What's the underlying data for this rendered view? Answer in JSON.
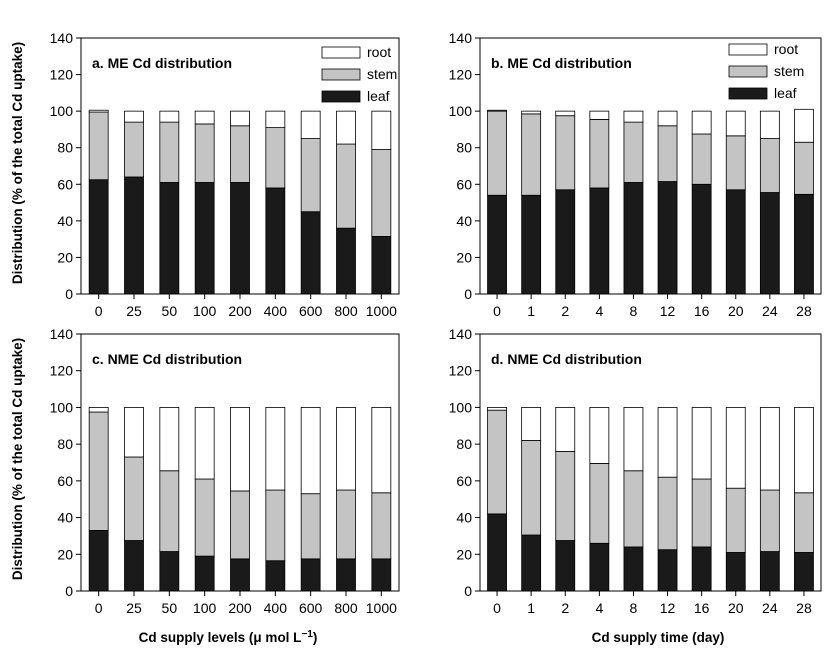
{
  "colors": {
    "leaf": "#1a1a1a",
    "stem": "#c4c4c4",
    "root": "#ffffff",
    "outline": "#000000"
  },
  "figure": {
    "ylabel_top": "Distribution (% of the total Cd uptake)",
    "ylabel_bottom": "Distribution (% of the total Cd uptake)",
    "xlabel_left": "Cd supply levels (μ mol L",
    "xlabel_left_sup": "−1",
    "xlabel_left_end": ")",
    "xlabel_right": "Cd supply time (day)"
  },
  "chart_data": [
    {
      "type": "bar",
      "stacked": true,
      "title": "a. ME Cd distribution",
      "categories": [
        "0",
        "25",
        "50",
        "100",
        "200",
        "400",
        "600",
        "800",
        "1000"
      ],
      "ylim": [
        0,
        140
      ],
      "yticks": [
        "0",
        "20",
        "40",
        "60",
        "80",
        "100",
        "120",
        "140"
      ],
      "legend": "top-right",
      "series": [
        {
          "name": "leaf",
          "values": [
            62.5,
            64,
            61,
            61,
            61,
            58,
            45,
            36,
            31.5
          ]
        },
        {
          "name": "stem",
          "values": [
            37,
            30,
            33,
            32,
            31,
            33,
            40,
            46,
            47.5
          ]
        },
        {
          "name": "root",
          "values": [
            1,
            6,
            6,
            7,
            8,
            9,
            15,
            18,
            21
          ]
        }
      ]
    },
    {
      "type": "bar",
      "stacked": true,
      "title": "b. ME Cd distribution",
      "categories": [
        "0",
        "1",
        "2",
        "4",
        "8",
        "12",
        "16",
        "20",
        "24",
        "28"
      ],
      "ylim": [
        0,
        140
      ],
      "yticks": [
        "0",
        "20",
        "40",
        "60",
        "80",
        "100",
        "120",
        "140"
      ],
      "legend": "top-right",
      "series": [
        {
          "name": "leaf",
          "values": [
            54,
            54,
            57,
            58,
            61,
            61.5,
            60,
            57,
            55.5,
            54.5
          ]
        },
        {
          "name": "stem",
          "values": [
            46,
            44.5,
            40.5,
            37.5,
            33,
            30.5,
            27.5,
            29.5,
            29.5,
            28.5
          ]
        },
        {
          "name": "root",
          "values": [
            0.5,
            1.5,
            2.5,
            4.5,
            6,
            8,
            12.5,
            13.5,
            15,
            18
          ]
        }
      ]
    },
    {
      "type": "bar",
      "stacked": true,
      "title": "c. NME Cd distribution",
      "categories": [
        "0",
        "25",
        "50",
        "100",
        "200",
        "400",
        "600",
        "800",
        "1000"
      ],
      "ylim": [
        0,
        140
      ],
      "yticks": [
        "0",
        "20",
        "40",
        "60",
        "80",
        "100",
        "120",
        "140"
      ],
      "series": [
        {
          "name": "leaf",
          "values": [
            33,
            27.5,
            21.5,
            19,
            17.5,
            16.5,
            17.5,
            17.5,
            17.5
          ]
        },
        {
          "name": "stem",
          "values": [
            64.5,
            45.5,
            44,
            42,
            37,
            38.5,
            35.5,
            37.5,
            36
          ]
        },
        {
          "name": "root",
          "values": [
            2.5,
            27,
            34.5,
            39,
            45.5,
            45,
            47,
            45,
            46.5
          ]
        }
      ]
    },
    {
      "type": "bar",
      "stacked": true,
      "title": "d. NME Cd distribution",
      "categories": [
        "0",
        "1",
        "2",
        "4",
        "8",
        "12",
        "16",
        "20",
        "24",
        "28"
      ],
      "ylim": [
        0,
        140
      ],
      "yticks": [
        "0",
        "20",
        "40",
        "60",
        "80",
        "100",
        "120",
        "140"
      ],
      "series": [
        {
          "name": "leaf",
          "values": [
            42,
            30.5,
            27.5,
            26,
            24,
            22.5,
            24,
            21,
            21.5,
            21
          ]
        },
        {
          "name": "stem",
          "values": [
            56.5,
            51.5,
            48.5,
            43.5,
            41.5,
            39.5,
            37,
            35,
            33.5,
            32.5
          ]
        },
        {
          "name": "root",
          "values": [
            1.5,
            18,
            24,
            30.5,
            34.5,
            38,
            39,
            44,
            45,
            46.5
          ]
        }
      ]
    }
  ]
}
